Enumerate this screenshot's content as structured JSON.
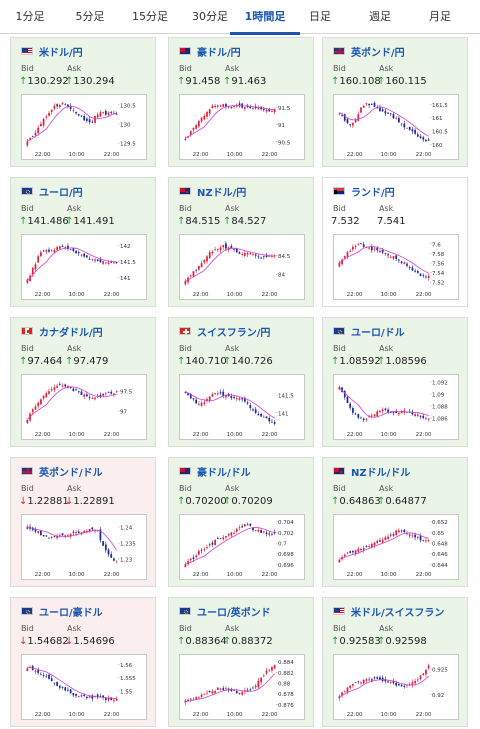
{
  "tabs": [
    {
      "label": "1分足",
      "active": false
    },
    {
      "label": "5分足",
      "active": false
    },
    {
      "label": "15分足",
      "active": false
    },
    {
      "label": "30分足",
      "active": false
    },
    {
      "label": "1時間足",
      "active": true
    },
    {
      "label": "日足",
      "active": false
    },
    {
      "label": "週足",
      "active": false
    },
    {
      "label": "月足",
      "active": false
    }
  ],
  "colors": {
    "accent": "#1a56b0",
    "up": "#2a9a2a",
    "down": "#d23030",
    "candle_up": "#e0203a",
    "candle_down": "#1a2a9a",
    "moving_average": "#d040d0",
    "card_up_bg": "#eaf5e8",
    "card_down_bg": "#fbeeee"
  },
  "labels": {
    "bid": "Bid",
    "ask": "Ask"
  },
  "cards": [
    {
      "pair": "米ドル/円",
      "flag": "flag-us",
      "trend": "up",
      "bid": "130.292",
      "ask": "130.294",
      "yticks": [
        "130.5",
        "130",
        "129.5"
      ],
      "xticks": [
        "22:00",
        "10:00",
        "22:00"
      ],
      "chart_data": {
        "type": "candlestick",
        "ylim": [
          129.4,
          130.65
        ],
        "close": [
          129.55,
          129.7,
          129.9,
          130.1,
          130.3,
          130.45,
          130.5,
          130.55,
          130.4,
          130.3,
          130.2,
          130.1,
          130.0,
          130.2,
          130.3,
          130.25,
          130.3,
          130.29
        ]
      }
    },
    {
      "pair": "豪ドル/円",
      "flag": "flag-au",
      "trend": "up",
      "bid": "91.458",
      "ask": "91.463",
      "yticks": [
        "91.5",
        "91",
        "90.5"
      ],
      "xticks": [
        "22:00",
        "10:00",
        "22:00"
      ],
      "chart_data": {
        "type": "candlestick",
        "ylim": [
          90.35,
          91.75
        ],
        "close": [
          90.6,
          90.8,
          91.0,
          91.2,
          91.4,
          91.55,
          91.6,
          91.55,
          91.5,
          91.6,
          91.55,
          91.5,
          91.45,
          91.5,
          91.45,
          91.4,
          91.46
        ]
      }
    },
    {
      "pair": "英ポンド/円",
      "flag": "flag-gb",
      "trend": "up",
      "bid": "160.108",
      "ask": "160.115",
      "yticks": [
        "161.5",
        "161",
        "160.5",
        "160"
      ],
      "xticks": [
        "22:00",
        "10:00",
        "22:00"
      ],
      "chart_data": {
        "type": "candlestick",
        "ylim": [
          159.9,
          161.7
        ],
        "close": [
          161.2,
          160.9,
          160.7,
          161.0,
          161.4,
          161.5,
          161.45,
          161.3,
          161.2,
          161.1,
          161.0,
          160.8,
          160.6,
          160.5,
          160.3,
          160.2,
          160.11
        ]
      }
    },
    {
      "pair": "ユーロ/円",
      "flag": "flag-eu",
      "trend": "up",
      "bid": "141.486",
      "ask": "141.491",
      "yticks": [
        "142",
        "141.5",
        "141"
      ],
      "xticks": [
        "22:00",
        "10:00",
        "22:00"
      ],
      "chart_data": {
        "type": "candlestick",
        "ylim": [
          140.7,
          142.2
        ],
        "close": [
          140.9,
          141.3,
          141.7,
          141.9,
          141.8,
          141.95,
          142.0,
          141.9,
          141.8,
          141.7,
          141.6,
          141.55,
          141.5,
          141.45,
          141.5,
          141.49
        ]
      }
    },
    {
      "pair": "NZドル/円",
      "flag": "flag-nz",
      "trend": "up",
      "bid": "84.515",
      "ask": "84.527",
      "yticks": [
        "84.5",
        "84"
      ],
      "xticks": [
        "22:00",
        "10:00",
        "22:00"
      ],
      "chart_data": {
        "type": "candlestick",
        "ylim": [
          83.65,
          84.95
        ],
        "close": [
          83.8,
          84.0,
          84.2,
          84.4,
          84.6,
          84.7,
          84.75,
          84.7,
          84.6,
          84.55,
          84.6,
          84.5,
          84.45,
          84.5,
          84.52
        ]
      }
    },
    {
      "pair": "ランド/円",
      "flag": "flag-za",
      "trend": "flat",
      "bid": "7.532",
      "ask": "7.541",
      "yticks": [
        "7.6",
        "7.58",
        "7.56",
        "7.54",
        "7.52"
      ],
      "xticks": [
        "22:00",
        "10:00",
        "22:00"
      ],
      "chart_data": {
        "type": "candlestick",
        "ylim": [
          7.51,
          7.61
        ],
        "close": [
          7.56,
          7.58,
          7.59,
          7.6,
          7.595,
          7.59,
          7.585,
          7.58,
          7.575,
          7.57,
          7.56,
          7.55,
          7.54,
          7.535,
          7.532
        ]
      }
    },
    {
      "pair": "カナダドル/円",
      "flag": "flag-ca",
      "trend": "up",
      "bid": "97.464",
      "ask": "97.479",
      "yticks": [
        "97.5",
        "97"
      ],
      "xticks": [
        "22:00",
        "10:00",
        "22:00"
      ],
      "chart_data": {
        "type": "candlestick",
        "ylim": [
          96.6,
          97.8
        ],
        "close": [
          96.8,
          97.1,
          97.3,
          97.5,
          97.6,
          97.65,
          97.6,
          97.5,
          97.4,
          97.3,
          97.35,
          97.4,
          97.45,
          97.46
        ]
      }
    },
    {
      "pair": "スイスフラン/円",
      "flag": "flag-ch",
      "trend": "up",
      "bid": "140.710",
      "ask": "140.726",
      "yticks": [
        "141.5",
        "141"
      ],
      "xticks": [
        "22:00",
        "10:00",
        "22:00"
      ],
      "chart_data": {
        "type": "candlestick",
        "ylim": [
          140.6,
          141.95
        ],
        "close": [
          141.6,
          141.4,
          141.2,
          141.3,
          141.5,
          141.55,
          141.5,
          141.45,
          141.4,
          141.35,
          141.2,
          141.0,
          140.9,
          140.8,
          140.71
        ]
      }
    },
    {
      "pair": "ユーロ/ドル",
      "flag": "flag-eu",
      "trend": "up",
      "bid": "1.08592",
      "ask": "1.08596",
      "yticks": [
        "1.092",
        "1.09",
        "1.088",
        "1.086"
      ],
      "xticks": [
        "22:00",
        "10:00",
        "22:00"
      ],
      "chart_data": {
        "type": "candlestick",
        "ylim": [
          1.0845,
          1.0925
        ],
        "close": [
          1.091,
          1.089,
          1.087,
          1.086,
          1.0855,
          1.0865,
          1.087,
          1.0875,
          1.087,
          1.0868,
          1.0872,
          1.087,
          1.0865,
          1.0862,
          1.0859
        ]
      }
    },
    {
      "pair": "英ポンド/ドル",
      "flag": "flag-gb",
      "trend": "down",
      "bid": "1.22881",
      "ask": "1.22891",
      "yticks": [
        "1.24",
        "1.235",
        "1.23"
      ],
      "xticks": [
        "22:00",
        "10:00",
        "22:00"
      ],
      "chart_data": {
        "type": "candlestick",
        "ylim": [
          1.2275,
          1.2425
        ],
        "close": [
          1.24,
          1.239,
          1.238,
          1.237,
          1.2365,
          1.237,
          1.2375,
          1.238,
          1.2385,
          1.239,
          1.2395,
          1.239,
          1.233,
          1.231,
          1.2288
        ]
      }
    },
    {
      "pair": "豪ドル/ドル",
      "flag": "flag-au",
      "trend": "up",
      "bid": "0.70200",
      "ask": "0.70209",
      "yticks": [
        "0.704",
        "0.702",
        "0.7",
        "0.698",
        "0.696"
      ],
      "xticks": [
        "22:00",
        "10:00",
        "22:00"
      ],
      "chart_data": {
        "type": "candlestick",
        "ylim": [
          0.6955,
          0.7045
        ],
        "close": [
          0.696,
          0.697,
          0.6985,
          0.699,
          0.7,
          0.701,
          0.7015,
          0.702,
          0.703,
          0.7035,
          0.7025,
          0.702,
          0.7018,
          0.702
        ]
      }
    },
    {
      "pair": "NZドル/ドル",
      "flag": "flag-nz",
      "trend": "up",
      "bid": "0.64863",
      "ask": "0.64877",
      "yticks": [
        "0.652",
        "0.65",
        "0.648",
        "0.646",
        "0.644"
      ],
      "xticks": [
        "22:00",
        "10:00",
        "22:00"
      ],
      "chart_data": {
        "type": "candlestick",
        "ylim": [
          0.6435,
          0.6525
        ],
        "close": [
          0.645,
          0.646,
          0.6465,
          0.647,
          0.6475,
          0.648,
          0.6485,
          0.649,
          0.65,
          0.6505,
          0.6495,
          0.649,
          0.6487,
          0.6486
        ]
      }
    },
    {
      "pair": "ユーロ/豪ドル",
      "flag": "flag-eu",
      "trend": "down",
      "bid": "1.54682",
      "ask": "1.54696",
      "yticks": [
        "1.56",
        "1.555",
        "1.55"
      ],
      "xticks": [
        "22:00",
        "10:00",
        "22:00"
      ],
      "chart_data": {
        "type": "candlestick",
        "ylim": [
          1.544,
          1.562
        ],
        "close": [
          1.559,
          1.558,
          1.556,
          1.555,
          1.553,
          1.551,
          1.5495,
          1.5485,
          1.548,
          1.5475,
          1.5478,
          1.5472,
          1.547,
          1.5468
        ]
      }
    },
    {
      "pair": "ユーロ/英ポンド",
      "flag": "flag-eu",
      "trend": "up",
      "bid": "0.88364",
      "ask": "0.88372",
      "yticks": [
        "0.884",
        "0.882",
        "0.88",
        "0.878",
        "0.876"
      ],
      "xticks": [
        "22:00",
        "10:00",
        "22:00"
      ],
      "chart_data": {
        "type": "candlestick",
        "ylim": [
          0.8755,
          0.8845
        ],
        "close": [
          0.8765,
          0.877,
          0.8775,
          0.878,
          0.8785,
          0.879,
          0.8788,
          0.8785,
          0.8782,
          0.8785,
          0.879,
          0.881,
          0.8825,
          0.8836
        ]
      }
    },
    {
      "pair": "米ドル/スイスフラン",
      "flag": "flag-us",
      "trend": "up",
      "bid": "0.92583",
      "ask": "0.92598",
      "yticks": [
        "0.925",
        "0.92"
      ],
      "xticks": [
        "22:00",
        "10:00",
        "22:00"
      ],
      "chart_data": {
        "type": "candlestick",
        "ylim": [
          0.9175,
          0.927
        ],
        "close": [
          0.9195,
          0.921,
          0.922,
          0.9225,
          0.923,
          0.923,
          0.9228,
          0.9225,
          0.922,
          0.9215,
          0.9218,
          0.9225,
          0.924,
          0.9258
        ]
      }
    }
  ]
}
